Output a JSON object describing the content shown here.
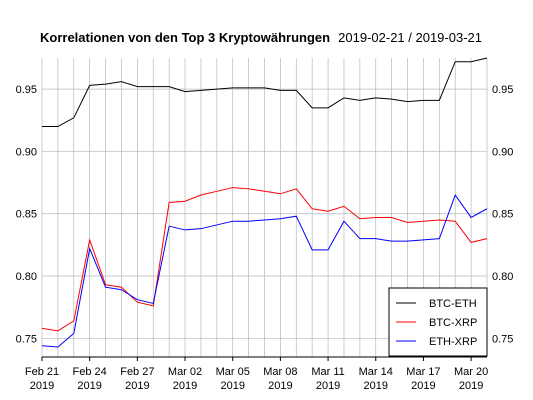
{
  "chart_data": {
    "type": "line",
    "title": "Korrelationen von den Top 3 Kryptowährungen",
    "subtitle": "2019-02-21 / 2019-03-21",
    "xlabel": "",
    "ylabel": "",
    "ylim": [
      0.735,
      0.975
    ],
    "yticks": [
      0.75,
      0.8,
      0.85,
      0.9,
      0.95
    ],
    "ytick_labels": [
      "0.75",
      "0.80",
      "0.85",
      "0.90",
      "0.95"
    ],
    "grid": "vertical",
    "legend_position": "bottom-right",
    "x": [
      "2019-02-21",
      "2019-02-22",
      "2019-02-23",
      "2019-02-24",
      "2019-02-25",
      "2019-02-26",
      "2019-02-27",
      "2019-02-28",
      "2019-03-01",
      "2019-03-02",
      "2019-03-03",
      "2019-03-04",
      "2019-03-05",
      "2019-03-06",
      "2019-03-07",
      "2019-03-08",
      "2019-03-09",
      "2019-03-10",
      "2019-03-11",
      "2019-03-12",
      "2019-03-13",
      "2019-03-14",
      "2019-03-15",
      "2019-03-16",
      "2019-03-17",
      "2019-03-18",
      "2019-03-19",
      "2019-03-20",
      "2019-03-21"
    ],
    "xtick_labels": [
      {
        "date": "2019-02-21",
        "line1": "Feb 21",
        "line2": "2019"
      },
      {
        "date": "2019-02-24",
        "line1": "Feb 24",
        "line2": "2019"
      },
      {
        "date": "2019-02-27",
        "line1": "Feb 27",
        "line2": "2019"
      },
      {
        "date": "2019-03-02",
        "line1": "Mar 02",
        "line2": "2019"
      },
      {
        "date": "2019-03-05",
        "line1": "Mar 05",
        "line2": "2019"
      },
      {
        "date": "2019-03-08",
        "line1": "Mar 08",
        "line2": "2019"
      },
      {
        "date": "2019-03-11",
        "line1": "Mar 11",
        "line2": "2019"
      },
      {
        "date": "2019-03-14",
        "line1": "Mar 14",
        "line2": "2019"
      },
      {
        "date": "2019-03-17",
        "line1": "Mar 17",
        "line2": "2019"
      },
      {
        "date": "2019-03-20",
        "line1": "Mar 20",
        "line2": "2019"
      }
    ],
    "series": [
      {
        "name": "BTC-ETH",
        "color": "#000000",
        "values": [
          0.92,
          0.92,
          0.927,
          0.953,
          0.954,
          0.956,
          0.952,
          0.952,
          0.952,
          0.948,
          0.949,
          0.95,
          0.951,
          0.951,
          0.951,
          0.949,
          0.949,
          0.935,
          0.935,
          0.943,
          0.941,
          0.943,
          0.942,
          0.94,
          0.941,
          0.941,
          0.972,
          0.972,
          0.975
        ]
      },
      {
        "name": "BTC-XRP",
        "color": "#ff0000",
        "values": [
          0.758,
          0.756,
          0.764,
          0.829,
          0.793,
          0.791,
          0.779,
          0.776,
          0.859,
          0.86,
          0.865,
          0.868,
          0.871,
          0.87,
          0.868,
          0.866,
          0.87,
          0.854,
          0.852,
          0.856,
          0.846,
          0.847,
          0.847,
          0.843,
          0.844,
          0.845,
          0.844,
          0.827,
          0.83
        ]
      },
      {
        "name": "ETH-XRP",
        "color": "#0000ff",
        "values": [
          0.744,
          0.743,
          0.754,
          0.822,
          0.791,
          0.789,
          0.781,
          0.778,
          0.84,
          0.837,
          0.838,
          0.841,
          0.844,
          0.844,
          0.845,
          0.846,
          0.848,
          0.821,
          0.821,
          0.844,
          0.83,
          0.83,
          0.828,
          0.828,
          0.829,
          0.83,
          0.865,
          0.847,
          0.854
        ]
      }
    ]
  }
}
